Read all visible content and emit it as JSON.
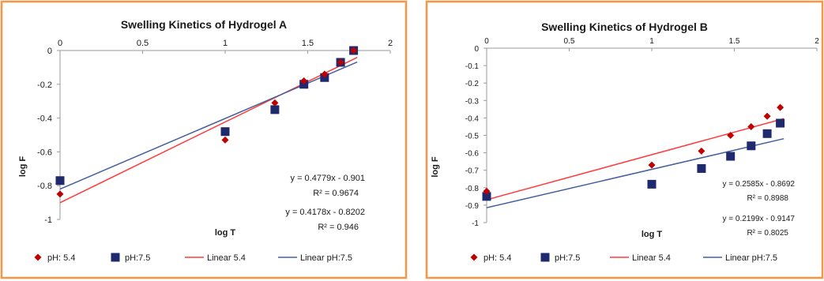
{
  "colors": {
    "frame": "#f79646",
    "ph54_marker": "#c00000",
    "ph75_marker": "#1f2a6e",
    "fit_ph54": "#ff3b3b",
    "fit_ph75": "#44609a",
    "axis": "#9a9a9a",
    "text": "#1a1a1a"
  },
  "chart_data": [
    {
      "type": "scatter",
      "title": "Swelling Kinetics of Hydrogel A",
      "xlabel": "log T",
      "ylabel": "log F",
      "xlim": [
        0,
        2
      ],
      "ylim": [
        -1,
        0
      ],
      "x_ticks": [
        "0",
        "0.5",
        "1",
        "1.5",
        "2"
      ],
      "y_ticks": [
        "0",
        "-0.2",
        "-0.4",
        "-0.6",
        "-0.8",
        "-1"
      ],
      "grid": false,
      "legend_position": "bottom",
      "series": [
        {
          "name": "pH: 5.4",
          "marker": "diamond",
          "x": [
            0,
            1,
            1.301,
            1.477,
            1.602,
            1.699,
            1.778
          ],
          "y": [
            -0.85,
            -0.53,
            -0.31,
            -0.18,
            -0.14,
            -0.07,
            0.0
          ]
        },
        {
          "name": "pH:7.5",
          "marker": "square",
          "x": [
            0,
            1,
            1.301,
            1.477,
            1.602,
            1.699,
            1.778
          ],
          "y": [
            -0.77,
            -0.48,
            -0.35,
            -0.2,
            -0.16,
            -0.07,
            0.0
          ]
        }
      ],
      "trendlines": [
        {
          "name": "Linear 5.4",
          "slope": 0.4779,
          "intercept": -0.901,
          "equation": "y = 0.4779x - 0.901",
          "r2": "R² = 0.9674"
        },
        {
          "name": "Linear pH:7.5",
          "slope": 0.4178,
          "intercept": -0.8202,
          "equation": "y = 0.4178x - 0.8202",
          "r2": "R² = 0.946"
        }
      ],
      "legend": [
        {
          "label": "pH: 5.4",
          "kind": "diamond",
          "color_key": "ph54_marker"
        },
        {
          "label": "pH:7.5",
          "kind": "square",
          "color_key": "ph75_marker"
        },
        {
          "label": "Linear 5.4",
          "kind": "line",
          "color_key": "fit_ph54"
        },
        {
          "label": "Linear pH:7.5",
          "kind": "line",
          "color_key": "fit_ph75"
        }
      ]
    },
    {
      "type": "scatter",
      "title": "Swelling Kinetics of Hydrogel B",
      "xlabel": "log T",
      "ylabel": "log F",
      "xlim": [
        0,
        2
      ],
      "ylim": [
        -1,
        0
      ],
      "x_ticks": [
        "0",
        "0.5",
        "1",
        "1.5",
        "2"
      ],
      "y_ticks": [
        "0",
        "-0.1",
        "-0.2",
        "-0.3",
        "-0.4",
        "-0.5",
        "-0.6",
        "-0.7",
        "-0.8",
        "-0.9",
        "-1"
      ],
      "grid": false,
      "legend_position": "bottom",
      "series": [
        {
          "name": "pH: 5.4",
          "marker": "diamond",
          "x": [
            0,
            1,
            1.301,
            1.477,
            1.602,
            1.699,
            1.778
          ],
          "y": [
            -0.82,
            -0.67,
            -0.59,
            -0.5,
            -0.45,
            -0.39,
            -0.34
          ]
        },
        {
          "name": "pH:7.5",
          "marker": "square",
          "x": [
            0,
            1,
            1.301,
            1.477,
            1.602,
            1.699,
            1.778
          ],
          "y": [
            -0.85,
            -0.78,
            -0.69,
            -0.62,
            -0.56,
            -0.49,
            -0.43
          ]
        }
      ],
      "trendlines": [
        {
          "name": "Linear 5.4",
          "slope": 0.2585,
          "intercept": -0.8692,
          "equation": "y = 0.2585x - 0.8692",
          "r2": "R² = 0.8988"
        },
        {
          "name": "Linear pH:7.5",
          "slope": 0.2199,
          "intercept": -0.9147,
          "equation": "y = 0.2199x - 0.9147",
          "r2": "R² = 0.8025"
        }
      ],
      "legend": [
        {
          "label": "pH: 5.4",
          "kind": "diamond",
          "color_key": "ph54_marker"
        },
        {
          "label": "pH:7.5",
          "kind": "square",
          "color_key": "ph75_marker"
        },
        {
          "label": "Linear 5.4",
          "kind": "line",
          "color_key": "fit_ph54"
        },
        {
          "label": "Linear pH:7.5",
          "kind": "line",
          "color_key": "fit_ph75"
        }
      ]
    }
  ]
}
